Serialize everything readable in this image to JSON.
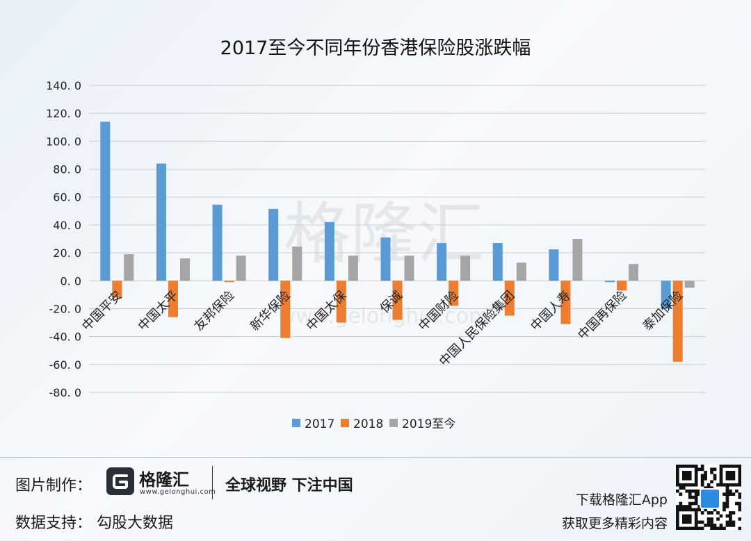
{
  "chart_data": {
    "type": "bar",
    "title": "2017至今不同年份香港保险股涨跌幅",
    "categories": [
      "中国平安",
      "中国太平",
      "友邦保险",
      "新华保险",
      "中国太保",
      "保诚",
      "中国财险",
      "中国人民保险集团",
      "中国人寿",
      "中国再保险",
      "泰加保险"
    ],
    "series": [
      {
        "name": "2017",
        "color": "#5b9bd5",
        "values": [
          114,
          84,
          54.5,
          51.5,
          42,
          31,
          27,
          27,
          22.5,
          -1,
          -20
        ]
      },
      {
        "name": "2018",
        "color": "#ed7d31",
        "values": [
          -12,
          -26,
          -1,
          -41,
          -30,
          -28,
          -18,
          -25,
          -31,
          -7,
          -58
        ]
      },
      {
        "name": "2019至今",
        "color": "#a5a5a5",
        "values": [
          19,
          16,
          18,
          24.5,
          18,
          18,
          18,
          13,
          30,
          12,
          -5
        ]
      }
    ],
    "ylim": [
      -80,
      140
    ],
    "yticks": [
      "140. 0",
      "120. 0",
      "100. 0",
      "80. 0",
      "60. 0",
      "40. 0",
      "20. 0",
      "0. 0",
      "-20. 0",
      "-40. 0",
      "-60. 0",
      "-80. 0"
    ],
    "ytick_values": [
      140,
      120,
      100,
      80,
      60,
      40,
      20,
      0,
      -20,
      -40,
      -60,
      -80
    ],
    "grid": true,
    "legend_position": "bottom-center"
  },
  "watermark": {
    "text": "格隆汇",
    "url": "www.gelonghui.com"
  },
  "footer": {
    "made_label": "图片制作：",
    "logo_text": "格隆汇",
    "logo_url": "www.gelonghui.com",
    "slogan": "全球视野 下注中国",
    "support_label": "数据支持：  勾股大数据",
    "app_line1": "下载格隆汇App",
    "app_line2": "获取更多精彩内容"
  },
  "icons": {
    "logo": "gelonghui-g-logo-icon",
    "qr": "qr-code-icon"
  }
}
